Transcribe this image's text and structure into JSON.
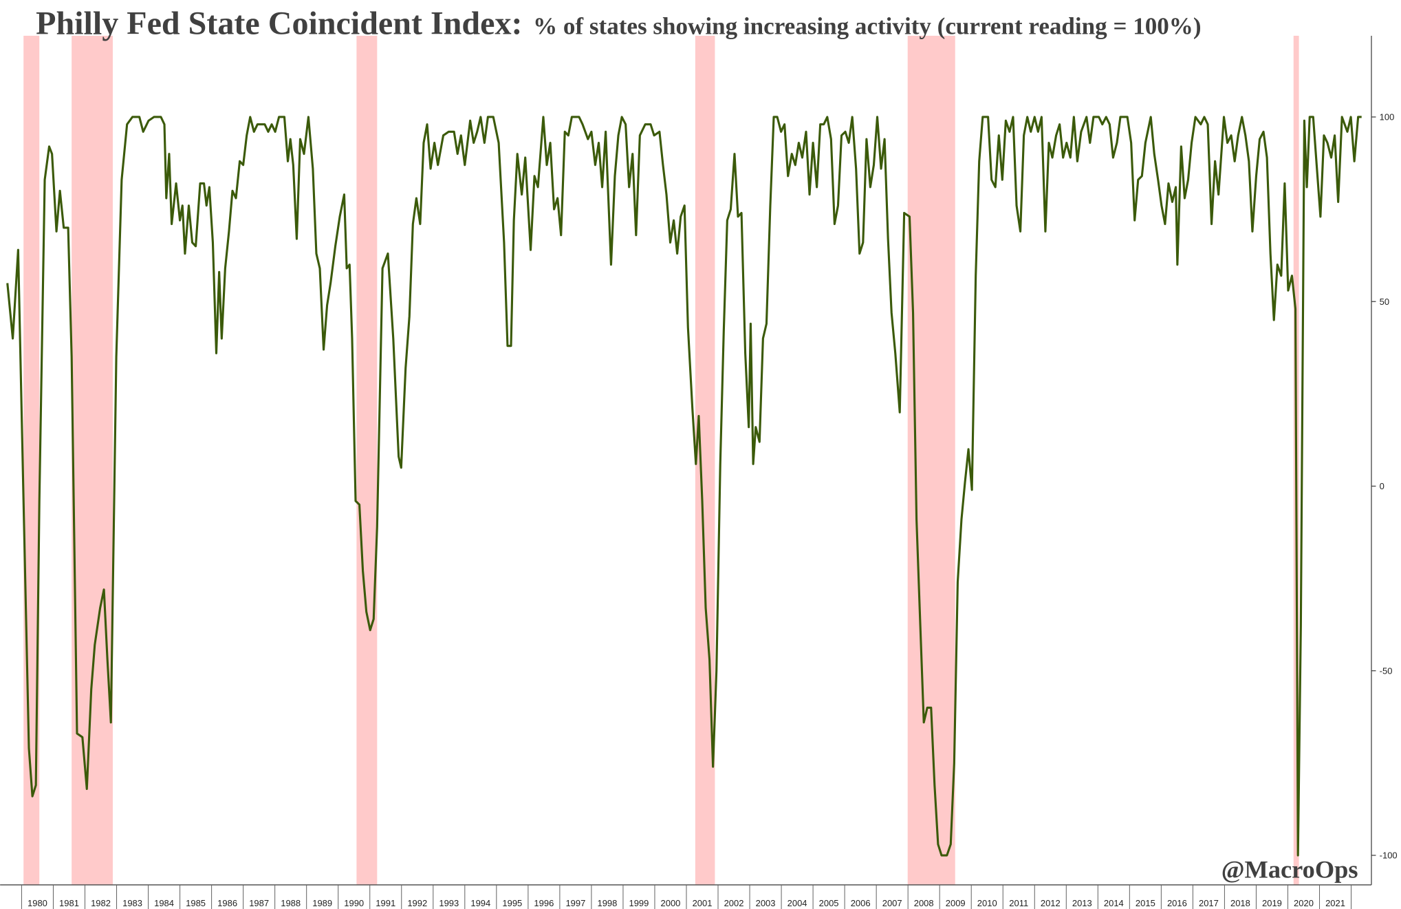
{
  "chart_data": {
    "type": "line",
    "title": "Philly Fed State Coincident Index:",
    "subtitle": "% of states showing increasing activity (current reading = 100%)",
    "annotation": "@MacroOps",
    "xlim": [
      1979.32,
      2022.64
    ],
    "ylim": [
      -108,
      122
    ],
    "xticks": [
      1980,
      1981,
      1982,
      1983,
      1984,
      1985,
      1986,
      1987,
      1988,
      1989,
      1990,
      1991,
      1992,
      1993,
      1994,
      1995,
      1996,
      1997,
      1998,
      1999,
      2000,
      2001,
      2002,
      2003,
      2004,
      2005,
      2006,
      2007,
      2008,
      2009,
      2010,
      2011,
      2012,
      2013,
      2014,
      2015,
      2016,
      2017,
      2018,
      2019,
      2020,
      2021
    ],
    "yticks": [
      -100,
      -50,
      0,
      50,
      100
    ],
    "recessions": [
      [
        1980.06,
        1980.56
      ],
      [
        1981.58,
        1982.88
      ],
      [
        1990.58,
        1991.23
      ],
      [
        2001.28,
        2001.9
      ],
      [
        2007.99,
        2009.49
      ],
      [
        2020.18,
        2020.35
      ]
    ],
    "recession_color": "#ffc4c4",
    "x": [
      1979.55,
      1979.72,
      1979.89,
      1980.06,
      1980.23,
      1980.34,
      1980.45,
      1980.56,
      1980.73,
      1980.87,
      1980.96,
      1981.1,
      1981.21,
      1981.33,
      1981.47,
      1981.58,
      1981.75,
      1981.92,
      1982.06,
      1982.2,
      1982.31,
      1982.48,
      1982.6,
      1982.71,
      1982.82,
      1982.99,
      1983.16,
      1983.33,
      1983.5,
      1983.72,
      1983.84,
      1984.01,
      1984.18,
      1984.4,
      1984.51,
      1984.57,
      1984.66,
      1984.74,
      1984.88,
      1985.0,
      1985.08,
      1985.16,
      1985.28,
      1985.39,
      1985.5,
      1985.64,
      1985.76,
      1985.84,
      1985.93,
      1986.04,
      1986.15,
      1986.24,
      1986.32,
      1986.43,
      1986.55,
      1986.66,
      1986.77,
      1986.89,
      1987.0,
      1987.11,
      1987.22,
      1987.34,
      1987.45,
      1987.68,
      1987.79,
      1987.9,
      1988.01,
      1988.13,
      1988.3,
      1988.41,
      1988.49,
      1988.58,
      1988.69,
      1988.8,
      1988.92,
      1989.06,
      1989.2,
      1989.31,
      1989.42,
      1989.54,
      1989.65,
      1989.76,
      1989.91,
      1990.05,
      1990.19,
      1990.27,
      1990.36,
      1990.44,
      1990.55,
      1990.67,
      1990.78,
      1990.89,
      1991.01,
      1991.12,
      1991.23,
      1991.4,
      1991.57,
      1991.74,
      1991.91,
      1991.99,
      1992.13,
      1992.25,
      1992.36,
      1992.47,
      1992.59,
      1992.7,
      1992.81,
      1992.92,
      1993.04,
      1993.15,
      1993.32,
      1993.49,
      1993.66,
      1993.77,
      1993.88,
      1994.0,
      1994.17,
      1994.28,
      1994.39,
      1994.5,
      1994.62,
      1994.73,
      1994.9,
      1995.07,
      1995.24,
      1995.35,
      1995.46,
      1995.55,
      1995.66,
      1995.8,
      1995.91,
      1996.08,
      1996.2,
      1996.31,
      1996.48,
      1996.59,
      1996.7,
      1996.82,
      1996.93,
      1997.04,
      1997.16,
      1997.27,
      1997.38,
      1997.61,
      1997.72,
      1997.89,
      1998.0,
      1998.12,
      1998.23,
      1998.34,
      1998.45,
      1998.62,
      1998.74,
      1998.85,
      1998.96,
      1999.08,
      1999.19,
      1999.3,
      1999.41,
      1999.53,
      1999.7,
      1999.87,
      1999.98,
      2000.15,
      2000.26,
      2000.37,
      2000.49,
      2000.6,
      2000.71,
      2000.82,
      2000.94,
      2001.05,
      2001.19,
      2001.3,
      2001.39,
      2001.5,
      2001.61,
      2001.73,
      2001.84,
      2001.95,
      2002.07,
      2002.18,
      2002.29,
      2002.4,
      2002.52,
      2002.63,
      2002.74,
      2002.86,
      2002.97,
      2003.03,
      2003.11,
      2003.19,
      2003.31,
      2003.42,
      2003.53,
      2003.65,
      2003.76,
      2003.87,
      2003.99,
      2004.1,
      2004.21,
      2004.33,
      2004.44,
      2004.55,
      2004.66,
      2004.78,
      2004.89,
      2005.0,
      2005.12,
      2005.23,
      2005.34,
      2005.45,
      2005.57,
      2005.68,
      2005.79,
      2005.9,
      2006.02,
      2006.13,
      2006.24,
      2006.36,
      2006.47,
      2006.58,
      2006.69,
      2006.81,
      2006.92,
      2007.03,
      2007.15,
      2007.26,
      2007.37,
      2007.48,
      2007.6,
      2007.74,
      2007.88,
      2008.05,
      2008.16,
      2008.27,
      2008.39,
      2008.5,
      2008.61,
      2008.73,
      2008.84,
      2008.95,
      2009.06,
      2009.23,
      2009.35,
      2009.46,
      2009.57,
      2009.69,
      2009.8,
      2009.91,
      2010.02,
      2010.14,
      2010.25,
      2010.36,
      2010.53,
      2010.64,
      2010.76,
      2010.87,
      2010.98,
      2011.09,
      2011.21,
      2011.32,
      2011.43,
      2011.55,
      2011.66,
      2011.77,
      2011.88,
      2012.0,
      2012.11,
      2012.22,
      2012.34,
      2012.45,
      2012.56,
      2012.68,
      2012.79,
      2012.9,
      2013.01,
      2013.13,
      2013.24,
      2013.35,
      2013.47,
      2013.64,
      2013.75,
      2013.86,
      2014.03,
      2014.14,
      2014.26,
      2014.37,
      2014.48,
      2014.6,
      2014.71,
      2014.93,
      2015.05,
      2015.16,
      2015.27,
      2015.39,
      2015.5,
      2015.67,
      2015.78,
      2015.9,
      2016.01,
      2016.12,
      2016.23,
      2016.35,
      2016.46,
      2016.51,
      2016.63,
      2016.74,
      2016.85,
      2016.96,
      2017.08,
      2017.25,
      2017.36,
      2017.47,
      2017.59,
      2017.7,
      2017.81,
      2017.98,
      2018.09,
      2018.21,
      2018.32,
      2018.43,
      2018.55,
      2018.66,
      2018.77,
      2018.88,
      2019.0,
      2019.11,
      2019.23,
      2019.34,
      2019.45,
      2019.56,
      2019.67,
      2019.79,
      2019.9,
      2020.01,
      2020.13,
      2020.24,
      2020.32,
      2020.41,
      2020.52,
      2020.6,
      2020.69,
      2020.8,
      2020.91,
      2021.03,
      2021.14,
      2021.25,
      2021.37,
      2021.48,
      2021.59,
      2021.71,
      2021.88,
      2021.99,
      2022.1,
      2022.22,
      2022.33
    ],
    "series": [
      {
        "name": "% of states showing increasing activity",
        "color": "#3b5a0a",
        "values": [
          55,
          40,
          64,
          -4,
          -71,
          -84,
          -81,
          -4,
          83,
          92,
          90,
          69,
          80,
          70,
          70,
          35,
          -67,
          -68,
          -82,
          -55,
          -43,
          -33,
          -28,
          -47,
          -64,
          35,
          83,
          98,
          100,
          100,
          96,
          99,
          100,
          100,
          98,
          78,
          90,
          71,
          82,
          72,
          76,
          63,
          76,
          66,
          65,
          82,
          82,
          76,
          81,
          66,
          36,
          58,
          40,
          59,
          69,
          80,
          78,
          88,
          87,
          95,
          100,
          96,
          98,
          98,
          96,
          98,
          96,
          100,
          100,
          88,
          94,
          87,
          67,
          94,
          90,
          100,
          86,
          63,
          59,
          37,
          49,
          55,
          65,
          73,
          79,
          59,
          60,
          40,
          -4,
          -5,
          -23,
          -34,
          -39,
          -36,
          -11,
          59,
          63,
          40,
          8,
          5,
          32,
          46,
          71,
          78,
          71,
          93,
          98,
          86,
          93,
          87,
          95,
          96,
          96,
          90,
          95,
          87,
          99,
          93,
          96,
          100,
          93,
          100,
          100,
          93,
          66,
          38,
          38,
          72,
          90,
          79,
          89,
          64,
          84,
          81,
          100,
          87,
          93,
          75,
          78,
          68,
          96,
          95,
          100,
          100,
          98,
          94,
          96,
          87,
          93,
          81,
          96,
          60,
          84,
          95,
          100,
          98,
          81,
          90,
          68,
          95,
          98,
          98,
          95,
          96,
          87,
          79,
          66,
          72,
          63,
          73,
          76,
          43,
          21,
          6,
          19,
          -4,
          -33,
          -47,
          -76,
          -50,
          6,
          42,
          72,
          75,
          90,
          73,
          74,
          36,
          16,
          44,
          6,
          16,
          12,
          40,
          44,
          76,
          100,
          100,
          96,
          98,
          84,
          90,
          87,
          93,
          89,
          96,
          79,
          93,
          81,
          98,
          98,
          100,
          94,
          71,
          76,
          95,
          96,
          93,
          100,
          86,
          63,
          66,
          94,
          81,
          87,
          100,
          86,
          94,
          67,
          47,
          36,
          20,
          74,
          73,
          47,
          -9,
          -38,
          -64,
          -60,
          -60,
          -81,
          -97,
          -100,
          -100,
          -97,
          -75,
          -26,
          -9,
          1,
          10,
          -1,
          57,
          88,
          100,
          100,
          83,
          81,
          95,
          83,
          99,
          96,
          100,
          76,
          69,
          95,
          100,
          96,
          100,
          96,
          100,
          69,
          93,
          89,
          95,
          98,
          89,
          93,
          89,
          100,
          88,
          96,
          100,
          93,
          100,
          100,
          98,
          100,
          98,
          89,
          93,
          100,
          100,
          93,
          72,
          83,
          84,
          93,
          100,
          90,
          83,
          76,
          71,
          82,
          77,
          81,
          60,
          92,
          78,
          83,
          93,
          100,
          98,
          100,
          98,
          71,
          88,
          79,
          100,
          93,
          95,
          88,
          95,
          100,
          95,
          88,
          69,
          84,
          94,
          96,
          89,
          63,
          45,
          60,
          57,
          82,
          53,
          57,
          48,
          -100,
          -38,
          99,
          81,
          100,
          100,
          87,
          73,
          95,
          93,
          89,
          95,
          77,
          100,
          96,
          100,
          88,
          100,
          100
        ]
      }
    ]
  }
}
